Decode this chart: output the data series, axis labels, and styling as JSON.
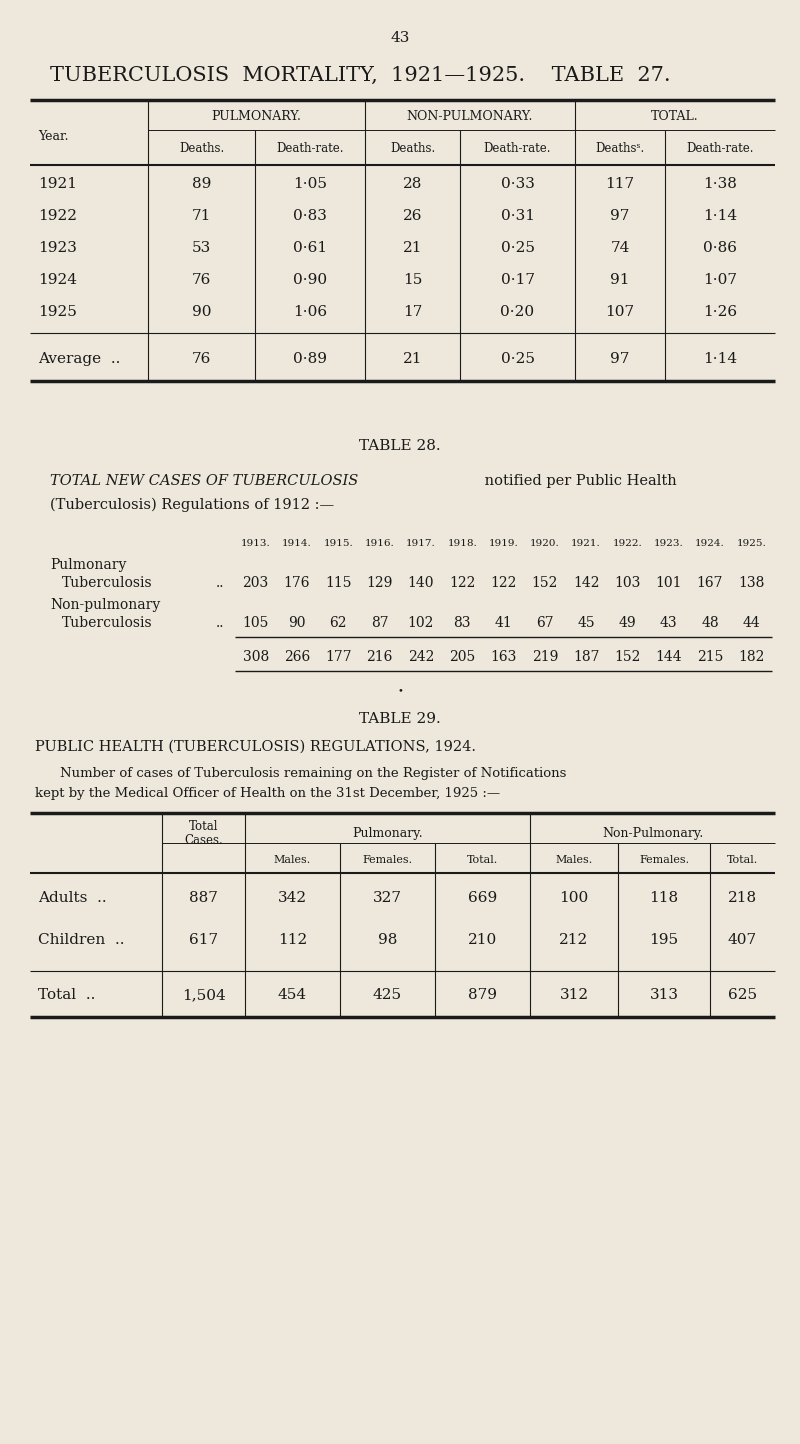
{
  "bg_color": "#ede8db",
  "text_color": "#1a1a1a",
  "page_number": "43",
  "page_title": "TUBERCULOSIS  MORTALITY,  1921—1925.    TABLE  27.",
  "table27": {
    "col_groups": [
      "PULMONARY.",
      "NON-PULMONARY.",
      "TOTAL."
    ],
    "sub_headers": [
      "Deaths.",
      "Death-rate.",
      "Deaths.",
      "Death-rate.",
      "Deathsˢ.",
      "Death-rate."
    ],
    "row_label": "Year.",
    "rows": [
      [
        "1921",
        "89",
        "1·05",
        "28",
        "0·33",
        "117",
        "1·38"
      ],
      [
        "1922",
        "71",
        "0·83",
        "26",
        "0·31",
        "97",
        "1·14"
      ],
      [
        "1923",
        "53",
        "0·61",
        "21",
        "0·25",
        "74",
        "0·86"
      ],
      [
        "1924",
        "76",
        "0·90",
        "15",
        "0·17",
        "91",
        "1·07"
      ],
      [
        "1925",
        "90",
        "1·06",
        "17",
        "0·20",
        "107",
        "1·26"
      ]
    ],
    "avg_row": [
      "Average  ..",
      "76",
      "0·89",
      "21",
      "0·25",
      "97",
      "1·14"
    ]
  },
  "table28": {
    "title": "TABLE 28.",
    "years": [
      "1913.",
      "1914.",
      "1915.",
      "1916.",
      "1917.",
      "1918.",
      "1919.",
      "1920.",
      "1921.",
      "1922.",
      "1923.",
      "1924.",
      "1925."
    ],
    "pulmonary_values": [
      203,
      176,
      115,
      129,
      140,
      122,
      122,
      152,
      142,
      103,
      101,
      167,
      138
    ],
    "nonpulmonary_values": [
      105,
      90,
      62,
      87,
      102,
      83,
      41,
      67,
      45,
      49,
      43,
      48,
      44
    ],
    "total_values": [
      308,
      266,
      177,
      216,
      242,
      205,
      163,
      219,
      187,
      152,
      144,
      215,
      182
    ]
  },
  "table29": {
    "title": "TABLE 29.",
    "heading": "PUBLIC HEALTH (TUBERCULOSIS) REGULATIONS, 1924.",
    "desc1": "Number of cases of Tuberculosis remaining on the Register of Notifications",
    "desc2": "kept by the Medical Officer of Health on the 31st December, 1925 :—",
    "col_headers_sub": [
      "Males.",
      "Females.",
      "Total.",
      "Males.",
      "Females.",
      "Total."
    ],
    "rows": [
      [
        "Adults  ..",
        "887",
        "342",
        "327",
        "669",
        "100",
        "118",
        "218"
      ],
      [
        "Children  ..",
        "617",
        "112",
        "98",
        "210",
        "212",
        "195",
        "407"
      ]
    ],
    "total_row": [
      "Total  ..",
      "1,504",
      "454",
      "425",
      "879",
      "312",
      "313",
      "625"
    ]
  }
}
